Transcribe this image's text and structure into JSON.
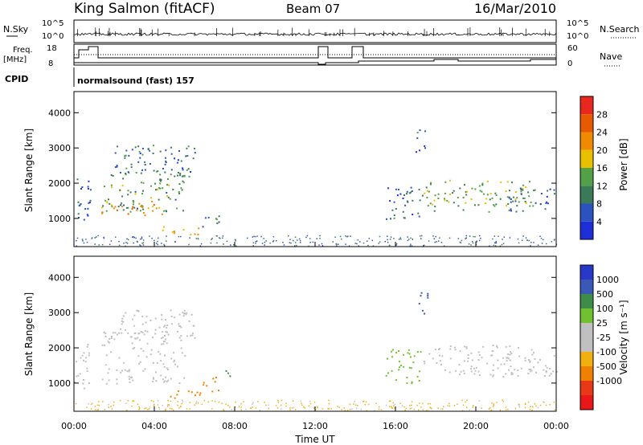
{
  "header": {
    "station": "King Salmon (fitACF)",
    "beam": "Beam 07",
    "date": "16/Mar/2010"
  },
  "params": {
    "nsky_label": "N.Sky",
    "nsearch_label": "N.Search",
    "freq_label_line1": "Freq.",
    "freq_label_line2": "[MHz]",
    "nave_label": "Nave",
    "cpid_label": "CPID",
    "cpid_value": "normalsound (fast) 157",
    "noise_left_ticks": [
      "10^5",
      "10^0"
    ],
    "noise_right_ticks": [
      "10^5",
      "10^0"
    ],
    "freq_ticks": [
      "18",
      "8"
    ],
    "nave_ticks": [
      "60",
      "0"
    ]
  },
  "colors": {
    "power_scale": [
      "#1f2fd8",
      "#2c52c0",
      "#3a7a58",
      "#52a048",
      "#e8c000",
      "#f08a00",
      "#e85a00",
      "#e8281e"
    ],
    "velocity_scale": [
      "#2838c8",
      "#3a58b8",
      "#3e8c4a",
      "#70c030",
      "#c0c0c0",
      "#c0c0c0",
      "#f0b010",
      "#f08000",
      "#e83818",
      "#e81818"
    ]
  },
  "chart_data": [
    {
      "type": "heatmap",
      "name": "power",
      "ylabel": "Slant Range [km]",
      "y_ticks": [
        1000,
        2000,
        3000,
        4000
      ],
      "ylim": [
        200,
        4600
      ],
      "colorbar": {
        "label": "Power [dB]",
        "ticks": [
          4,
          8,
          12,
          16,
          20,
          24,
          28
        ],
        "range": [
          0,
          32
        ]
      },
      "echo_regions": [
        {
          "t0": 0.0,
          "t1": 0.8,
          "r0": 850,
          "r1": 2300,
          "value": 6
        },
        {
          "t0": 1.35,
          "t1": 4.5,
          "r0": 1050,
          "r1": 1500,
          "value": 22
        },
        {
          "t0": 1.35,
          "t1": 5.5,
          "r0": 1200,
          "r1": 2500,
          "value": 12
        },
        {
          "t0": 2.0,
          "t1": 6.0,
          "r0": 2200,
          "r1": 3100,
          "value": 8
        },
        {
          "t0": 4.2,
          "t1": 6.3,
          "r0": 550,
          "r1": 800,
          "value": 20
        },
        {
          "t0": 6.3,
          "t1": 7.3,
          "r0": 750,
          "r1": 1200,
          "value": 8
        },
        {
          "t0": 15.5,
          "t1": 17.3,
          "r0": 1000,
          "r1": 2000,
          "value": 8
        },
        {
          "t0": 17.0,
          "t1": 17.6,
          "r0": 2900,
          "r1": 3600,
          "value": 8
        },
        {
          "t0": 17.3,
          "t1": 22.8,
          "r0": 1200,
          "r1": 2100,
          "value": 14
        },
        {
          "t0": 21.5,
          "t1": 24.0,
          "r0": 1200,
          "r1": 1900,
          "value": 8
        }
      ]
    },
    {
      "type": "heatmap",
      "name": "velocity",
      "xlabel": "Time UT",
      "ylabel": "Slant Range [km]",
      "x_ticks": [
        "00:00",
        "04:00",
        "08:00",
        "12:00",
        "16:00",
        "20:00",
        "00:00"
      ],
      "xlim": [
        0,
        24
      ],
      "y_ticks": [
        1000,
        2000,
        3000,
        4000
      ],
      "ylim": [
        200,
        4600
      ],
      "colorbar": {
        "label": "Velocity [m s⁻¹]",
        "ticks": [
          "1000",
          "500",
          "100",
          "25",
          "-25",
          "-100",
          "-500",
          "-1000"
        ]
      },
      "echo_regions": [
        {
          "t0": 0.0,
          "t1": 0.8,
          "r0": 850,
          "r1": 2300,
          "value": 0
        },
        {
          "t0": 1.35,
          "t1": 5.5,
          "r0": 1000,
          "r1": 2500,
          "value": 0
        },
        {
          "t0": 2.0,
          "t1": 6.0,
          "r0": 2200,
          "r1": 3100,
          "value": 0
        },
        {
          "t0": 4.2,
          "t1": 6.3,
          "r0": 550,
          "r1": 800,
          "value": -150
        },
        {
          "t0": 6.3,
          "t1": 7.3,
          "r0": 750,
          "r1": 1200,
          "value": -400
        },
        {
          "t0": 7.4,
          "t1": 7.9,
          "r0": 1100,
          "r1": 1400,
          "value": 120
        },
        {
          "t0": 15.5,
          "t1": 17.3,
          "r0": 1000,
          "r1": 2000,
          "value": 60
        },
        {
          "t0": 17.0,
          "t1": 17.6,
          "r0": 2900,
          "r1": 3600,
          "value": 600
        },
        {
          "t0": 17.3,
          "t1": 22.8,
          "r0": 1200,
          "r1": 2100,
          "value": 0
        },
        {
          "t0": 21.5,
          "t1": 24.0,
          "r0": 1200,
          "r1": 1900,
          "value": 0
        }
      ]
    }
  ]
}
